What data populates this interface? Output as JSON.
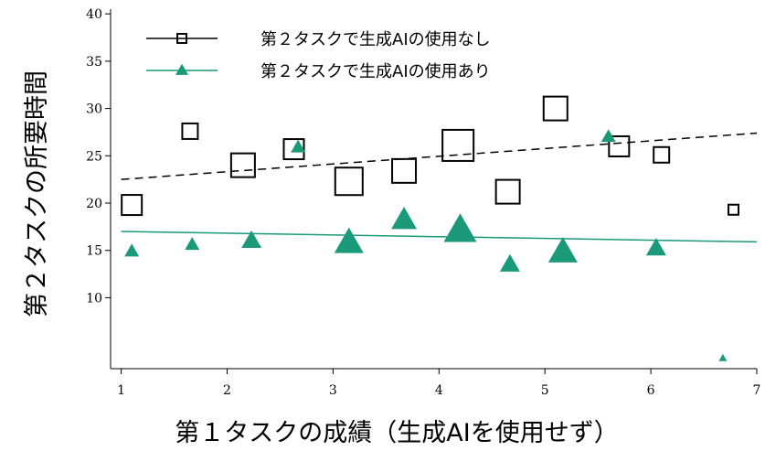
{
  "chart_data": {
    "type": "scatter",
    "title": "",
    "xlabel": "第１タスクの成績（生成AIを使用せず）",
    "ylabel": "第２タスクの所要時間",
    "xlim": [
      0.9,
      7.0
    ],
    "ylim": [
      2.5,
      40.5
    ],
    "x_ticks": [
      1,
      2,
      3,
      4,
      5,
      6,
      7
    ],
    "y_ticks": [
      10,
      15,
      20,
      25,
      30,
      35,
      40
    ],
    "grid": false,
    "legend_position": "top-left",
    "colors": {
      "no_ai": "#000000",
      "with_ai": "#1a9a78"
    },
    "series": [
      {
        "name": "第２タスクで生成AIの使用なし",
        "marker": "square",
        "line_style": "dashed",
        "trend_line": {
          "x": [
            1.0,
            7.0
          ],
          "y": [
            22.5,
            27.4
          ]
        },
        "points": [
          {
            "x": 1.1,
            "y": 19.8,
            "size": 2
          },
          {
            "x": 1.65,
            "y": 27.6,
            "size": 1
          },
          {
            "x": 2.15,
            "y": 24.0,
            "size": 3
          },
          {
            "x": 2.63,
            "y": 25.7,
            "size": 2
          },
          {
            "x": 3.15,
            "y": 22.3,
            "size": 4
          },
          {
            "x": 3.67,
            "y": 23.4,
            "size": 3
          },
          {
            "x": 4.18,
            "y": 26.1,
            "size": 5
          },
          {
            "x": 4.65,
            "y": 21.2,
            "size": 3
          },
          {
            "x": 5.1,
            "y": 30.0,
            "size": 3
          },
          {
            "x": 5.7,
            "y": 26.0,
            "size": 2
          },
          {
            "x": 6.1,
            "y": 25.1,
            "size": 1
          },
          {
            "x": 6.78,
            "y": 19.3,
            "size": 0
          }
        ]
      },
      {
        "name": "第２タスクで生成AIの使用あり",
        "marker": "triangle",
        "line_style": "solid",
        "trend_line": {
          "x": [
            1.0,
            7.0
          ],
          "y": [
            17.0,
            15.9
          ]
        },
        "points": [
          {
            "x": 1.1,
            "y": 14.9,
            "size": 1
          },
          {
            "x": 1.67,
            "y": 15.6,
            "size": 1
          },
          {
            "x": 2.23,
            "y": 16.0,
            "size": 2
          },
          {
            "x": 2.67,
            "y": 25.9,
            "size": 1
          },
          {
            "x": 3.15,
            "y": 15.8,
            "size": 4
          },
          {
            "x": 3.67,
            "y": 18.2,
            "size": 3
          },
          {
            "x": 4.2,
            "y": 17.1,
            "size": 5
          },
          {
            "x": 4.67,
            "y": 13.5,
            "size": 2
          },
          {
            "x": 5.17,
            "y": 14.8,
            "size": 4
          },
          {
            "x": 5.6,
            "y": 27.0,
            "size": 1
          },
          {
            "x": 6.05,
            "y": 15.2,
            "size": 2
          },
          {
            "x": 6.68,
            "y": 3.6,
            "size": 0
          }
        ]
      }
    ]
  }
}
